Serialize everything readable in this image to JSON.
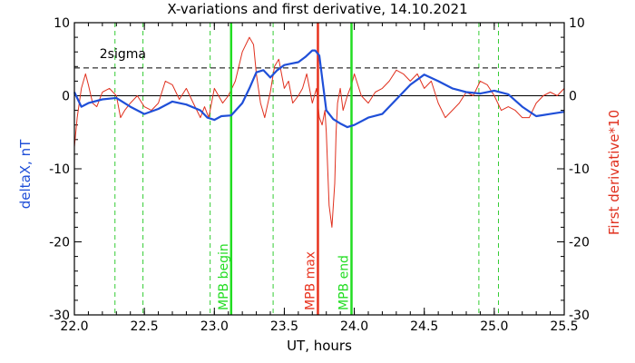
{
  "colors": {
    "background": "#ffffff",
    "frame": "#000000",
    "delta_x": "#1f4fd8",
    "derivative": "#e0301e",
    "mpb_boundary": "#22dd22",
    "mpb_max": "#e8331e",
    "dashed_green": "#33cc33"
  },
  "chart_data": {
    "type": "line",
    "title": "X-variations and first derivative, 14.10.2021",
    "xlabel": "UT, hours",
    "ylabel_left": "deltaX, nT",
    "ylabel_right": "First derivative*10",
    "xlim": [
      22.0,
      25.5
    ],
    "ylim_left": [
      -30,
      10
    ],
    "ylim_right": [
      -30,
      10
    ],
    "x_ticks": [
      "22.0",
      "22.5",
      "23.0",
      "23.5",
      "24.0",
      "24.5",
      "25.0",
      "25.5"
    ],
    "y_ticks_left": [
      "10",
      "0",
      "-10",
      "-20",
      "-30"
    ],
    "y_ticks_right": [
      "10",
      "0",
      "-10",
      "-20",
      "-30"
    ],
    "grid": false,
    "threshold_line": {
      "label": "2sigma",
      "y": 3.8,
      "style": "dashed"
    },
    "zero_line": {
      "y": 0
    },
    "vertical_lines": [
      {
        "x": 23.12,
        "label": "MPB begin",
        "kind": "mpb_boundary"
      },
      {
        "x": 23.74,
        "label": "MPB max",
        "kind": "mpb_max"
      },
      {
        "x": 23.98,
        "label": "MPB end",
        "kind": "mpb_boundary"
      }
    ],
    "dashed_verticals": [
      22.29,
      22.49,
      22.97,
      23.42,
      24.89,
      25.03
    ],
    "series": [
      {
        "key": "delta_x",
        "axis": "left",
        "x": [
          22.0,
          22.05,
          22.1,
          22.2,
          22.3,
          22.4,
          22.5,
          22.6,
          22.7,
          22.8,
          22.9,
          22.95,
          23.0,
          23.05,
          23.12,
          23.2,
          23.25,
          23.3,
          23.35,
          23.4,
          23.45,
          23.5,
          23.55,
          23.6,
          23.65,
          23.7,
          23.72,
          23.75,
          23.78,
          23.8,
          23.85,
          23.9,
          23.95,
          24.0,
          24.1,
          24.2,
          24.3,
          24.4,
          24.5,
          24.6,
          24.7,
          24.8,
          24.9,
          25.0,
          25.1,
          25.2,
          25.3,
          25.4,
          25.5
        ],
        "y": [
          0.5,
          -1.5,
          -1.0,
          -0.5,
          -0.3,
          -1.5,
          -2.5,
          -1.8,
          -0.8,
          -1.2,
          -2.0,
          -3.0,
          -3.3,
          -2.8,
          -2.7,
          -1.0,
          1.0,
          3.2,
          3.5,
          2.5,
          3.5,
          4.2,
          4.4,
          4.6,
          5.3,
          6.2,
          6.2,
          5.5,
          1.0,
          -2.0,
          -3.2,
          -3.8,
          -4.3,
          -4.0,
          -3.0,
          -2.5,
          -0.5,
          1.5,
          2.9,
          2.0,
          1.0,
          0.5,
          0.3,
          0.7,
          0.2,
          -1.5,
          -2.8,
          -2.5,
          -2.2
        ]
      },
      {
        "key": "derivative",
        "axis": "right",
        "x": [
          22.0,
          22.02,
          22.05,
          22.08,
          22.1,
          22.13,
          22.16,
          22.2,
          22.25,
          22.3,
          22.33,
          22.36,
          22.4,
          22.45,
          22.5,
          22.55,
          22.6,
          22.65,
          22.7,
          22.75,
          22.8,
          22.85,
          22.9,
          22.93,
          22.96,
          23.0,
          23.03,
          23.06,
          23.1,
          23.15,
          23.2,
          23.25,
          23.28,
          23.3,
          23.33,
          23.36,
          23.4,
          23.43,
          23.46,
          23.5,
          23.53,
          23.56,
          23.6,
          23.63,
          23.66,
          23.7,
          23.73,
          23.75,
          23.77,
          23.79,
          23.8,
          23.82,
          23.84,
          23.86,
          23.87,
          23.88,
          23.9,
          23.92,
          23.95,
          23.98,
          24.0,
          24.05,
          24.1,
          24.15,
          24.2,
          24.25,
          24.3,
          24.35,
          24.4,
          24.45,
          24.5,
          24.55,
          24.6,
          24.65,
          24.7,
          24.75,
          24.8,
          24.85,
          24.9,
          24.95,
          25.0,
          25.05,
          25.1,
          25.15,
          25.2,
          25.25,
          25.3,
          25.35,
          25.4,
          25.45,
          25.5
        ],
        "y": [
          -7.0,
          -3.0,
          1.0,
          3.0,
          1.5,
          -1.0,
          -1.5,
          0.5,
          1.0,
          0.0,
          -3.0,
          -2.0,
          -1.0,
          0.0,
          -1.5,
          -2.0,
          -1.0,
          2.0,
          1.5,
          -0.5,
          1.0,
          -1.0,
          -3.0,
          -1.5,
          -3.0,
          1.0,
          0.0,
          -1.0,
          0.0,
          2.0,
          6.0,
          8.0,
          7.0,
          3.0,
          -1.0,
          -3.0,
          0.5,
          4.0,
          5.0,
          1.0,
          2.0,
          -1.0,
          0.0,
          1.0,
          3.0,
          -1.0,
          1.0,
          -3.0,
          -4.0,
          -2.0,
          -5.0,
          -15.0,
          -18.0,
          -12.0,
          -5.0,
          -1.0,
          1.0,
          -2.0,
          0.0,
          1.5,
          3.0,
          0.0,
          -1.0,
          0.5,
          1.0,
          2.0,
          3.5,
          3.0,
          2.0,
          3.0,
          1.0,
          2.0,
          -1.0,
          -3.0,
          -2.0,
          -1.0,
          0.5,
          0.0,
          2.0,
          1.5,
          0.0,
          -2.0,
          -1.5,
          -2.0,
          -3.0,
          -3.0,
          -1.0,
          0.0,
          0.5,
          0.0,
          1.0
        ]
      }
    ]
  }
}
